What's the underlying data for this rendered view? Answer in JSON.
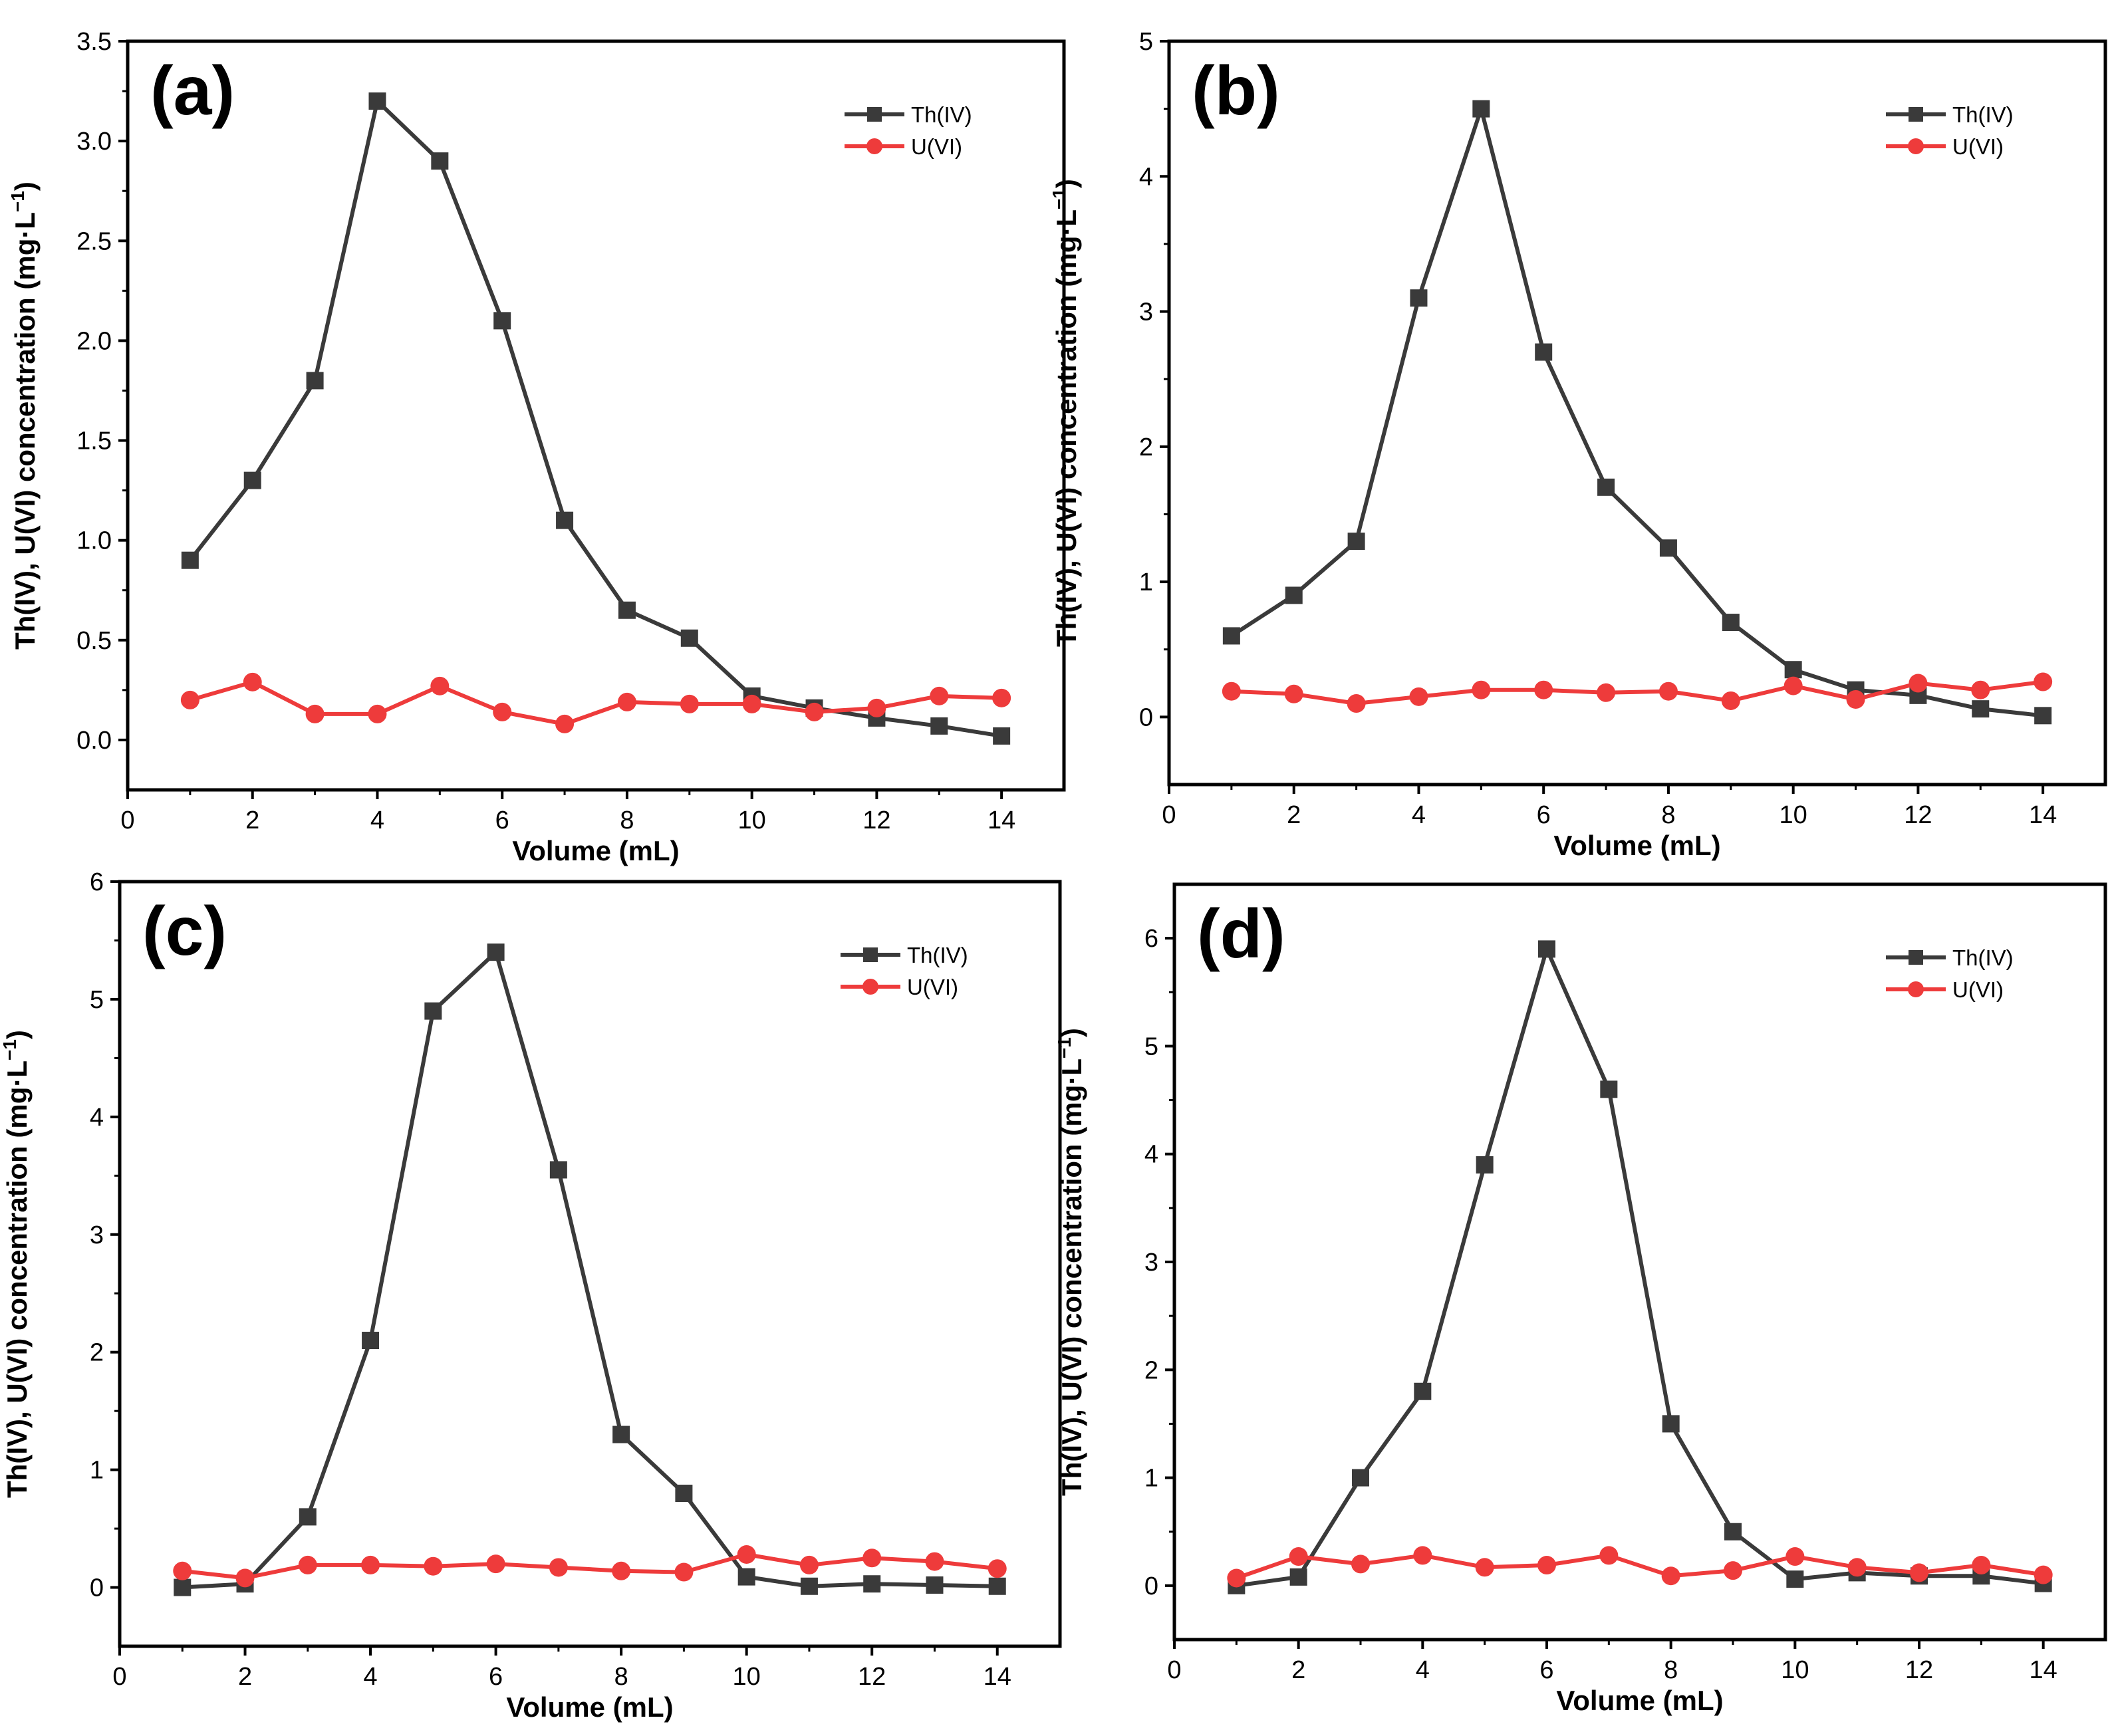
{
  "chart_data": [
    {
      "type": "line",
      "panel_label": "(a)",
      "xlabel": "Volume (mL)",
      "ylabel": "Th(IV), U(VI) concentration (mg·L",
      "ylabel_sup": "−1",
      "ylabel_close": ")",
      "xlim": [
        0,
        15
      ],
      "ylim": [
        -0.25,
        3.5
      ],
      "xticks": [
        0,
        2,
        4,
        6,
        8,
        10,
        12,
        14
      ],
      "xtick_labels": [
        "0",
        "2",
        "4",
        "6",
        "8",
        "10",
        "12",
        "14"
      ],
      "yticks": [
        0,
        0.5,
        1,
        1.5,
        2,
        2.5,
        3,
        3.5
      ],
      "ytick_labels": [
        "0.0",
        "0.5",
        "1.0",
        "1.5",
        "2.0",
        "2.5",
        "3.0",
        "3.5"
      ],
      "legend_position": "top-right",
      "x": [
        1,
        2,
        3,
        4,
        5,
        6,
        7,
        8,
        9,
        10,
        11,
        12,
        13,
        14
      ],
      "series": [
        {
          "name": "Th(IV)",
          "marker": "square",
          "color": "#3a3a3a",
          "values": [
            0.9,
            1.3,
            1.8,
            3.2,
            2.9,
            2.1,
            1.1,
            0.65,
            0.51,
            0.22,
            0.16,
            0.11,
            0.07,
            0.02
          ]
        },
        {
          "name": "U(VI)",
          "marker": "circle",
          "color": "#ee3b3b",
          "values": [
            0.2,
            0.29,
            0.13,
            0.13,
            0.27,
            0.14,
            0.08,
            0.19,
            0.18,
            0.18,
            0.14,
            0.16,
            0.22,
            0.21
          ]
        }
      ]
    },
    {
      "type": "line",
      "panel_label": "(b)",
      "xlabel": "Volume (mL)",
      "ylabel": "Th(IV), U(VI) concentration (mg·L",
      "ylabel_sup": "−1",
      "ylabel_close": ")",
      "xlim": [
        0,
        15
      ],
      "ylim": [
        -0.5,
        5
      ],
      "xticks": [
        0,
        2,
        4,
        6,
        8,
        10,
        12,
        14
      ],
      "xtick_labels": [
        "0",
        "2",
        "4",
        "6",
        "8",
        "10",
        "12",
        "14"
      ],
      "yticks": [
        0,
        1,
        2,
        3,
        4,
        5
      ],
      "ytick_labels": [
        "0",
        "1",
        "2",
        "3",
        "4",
        "5"
      ],
      "legend_position": "top-right",
      "x": [
        1,
        2,
        3,
        4,
        5,
        6,
        7,
        8,
        9,
        10,
        11,
        12,
        13,
        14
      ],
      "series": [
        {
          "name": "Th(IV)",
          "marker": "square",
          "color": "#3a3a3a",
          "values": [
            0.6,
            0.9,
            1.3,
            3.1,
            4.5,
            2.7,
            1.7,
            1.25,
            0.7,
            0.35,
            0.2,
            0.16,
            0.06,
            0.01
          ]
        },
        {
          "name": "U(VI)",
          "marker": "circle",
          "color": "#ee3b3b",
          "values": [
            0.19,
            0.17,
            0.1,
            0.15,
            0.2,
            0.2,
            0.18,
            0.19,
            0.12,
            0.23,
            0.13,
            0.25,
            0.2,
            0.26
          ]
        }
      ]
    },
    {
      "type": "line",
      "panel_label": "(c)",
      "xlabel": "Volume (mL)",
      "ylabel": "Th(IV), U(VI) concentration (mg·L",
      "ylabel_sup": "−1",
      "ylabel_close": ")",
      "xlim": [
        0,
        15
      ],
      "ylim": [
        -0.5,
        6
      ],
      "xticks": [
        0,
        2,
        4,
        6,
        8,
        10,
        12,
        14
      ],
      "xtick_labels": [
        "0",
        "2",
        "4",
        "6",
        "8",
        "10",
        "12",
        "14"
      ],
      "yticks": [
        0,
        1,
        2,
        3,
        4,
        5,
        6
      ],
      "ytick_labels": [
        "0",
        "1",
        "2",
        "3",
        "4",
        "5",
        "6"
      ],
      "legend_position": "top-right",
      "x": [
        1,
        2,
        3,
        4,
        5,
        6,
        7,
        8,
        9,
        10,
        11,
        12,
        13,
        14
      ],
      "series": [
        {
          "name": "Th(IV)",
          "marker": "square",
          "color": "#3a3a3a",
          "values": [
            0.0,
            0.03,
            0.6,
            2.1,
            4.9,
            5.4,
            3.55,
            1.3,
            0.8,
            0.09,
            0.01,
            0.03,
            0.02,
            0.01
          ]
        },
        {
          "name": "U(VI)",
          "marker": "circle",
          "color": "#ee3b3b",
          "values": [
            0.14,
            0.08,
            0.19,
            0.19,
            0.18,
            0.2,
            0.17,
            0.14,
            0.13,
            0.28,
            0.19,
            0.25,
            0.22,
            0.16
          ]
        }
      ]
    },
    {
      "type": "line",
      "panel_label": "(d)",
      "xlabel": "Volume (mL)",
      "ylabel": "Th(IV), U(VI) concentration (mg·L",
      "ylabel_sup": "−1",
      "ylabel_close": ")",
      "xlim": [
        0,
        15
      ],
      "ylim": [
        -0.5,
        6.5
      ],
      "xticks": [
        0,
        2,
        4,
        6,
        8,
        10,
        12,
        14
      ],
      "xtick_labels": [
        "0",
        "2",
        "4",
        "6",
        "8",
        "10",
        "12",
        "14"
      ],
      "yticks": [
        0,
        1,
        2,
        3,
        4,
        5,
        6
      ],
      "ytick_labels": [
        "0",
        "1",
        "2",
        "3",
        "4",
        "5",
        "6"
      ],
      "legend_position": "top-right",
      "x": [
        1,
        2,
        3,
        4,
        5,
        6,
        7,
        8,
        9,
        10,
        11,
        12,
        13,
        14
      ],
      "series": [
        {
          "name": "Th(IV)",
          "marker": "square",
          "color": "#3a3a3a",
          "values": [
            0.0,
            0.08,
            1.0,
            1.8,
            3.9,
            5.9,
            4.6,
            1.5,
            0.5,
            0.06,
            0.12,
            0.09,
            0.09,
            0.02
          ]
        },
        {
          "name": "U(VI)",
          "marker": "circle",
          "color": "#ee3b3b",
          "values": [
            0.07,
            0.27,
            0.2,
            0.28,
            0.17,
            0.19,
            0.28,
            0.09,
            0.14,
            0.27,
            0.17,
            0.12,
            0.19,
            0.1
          ]
        }
      ]
    }
  ]
}
